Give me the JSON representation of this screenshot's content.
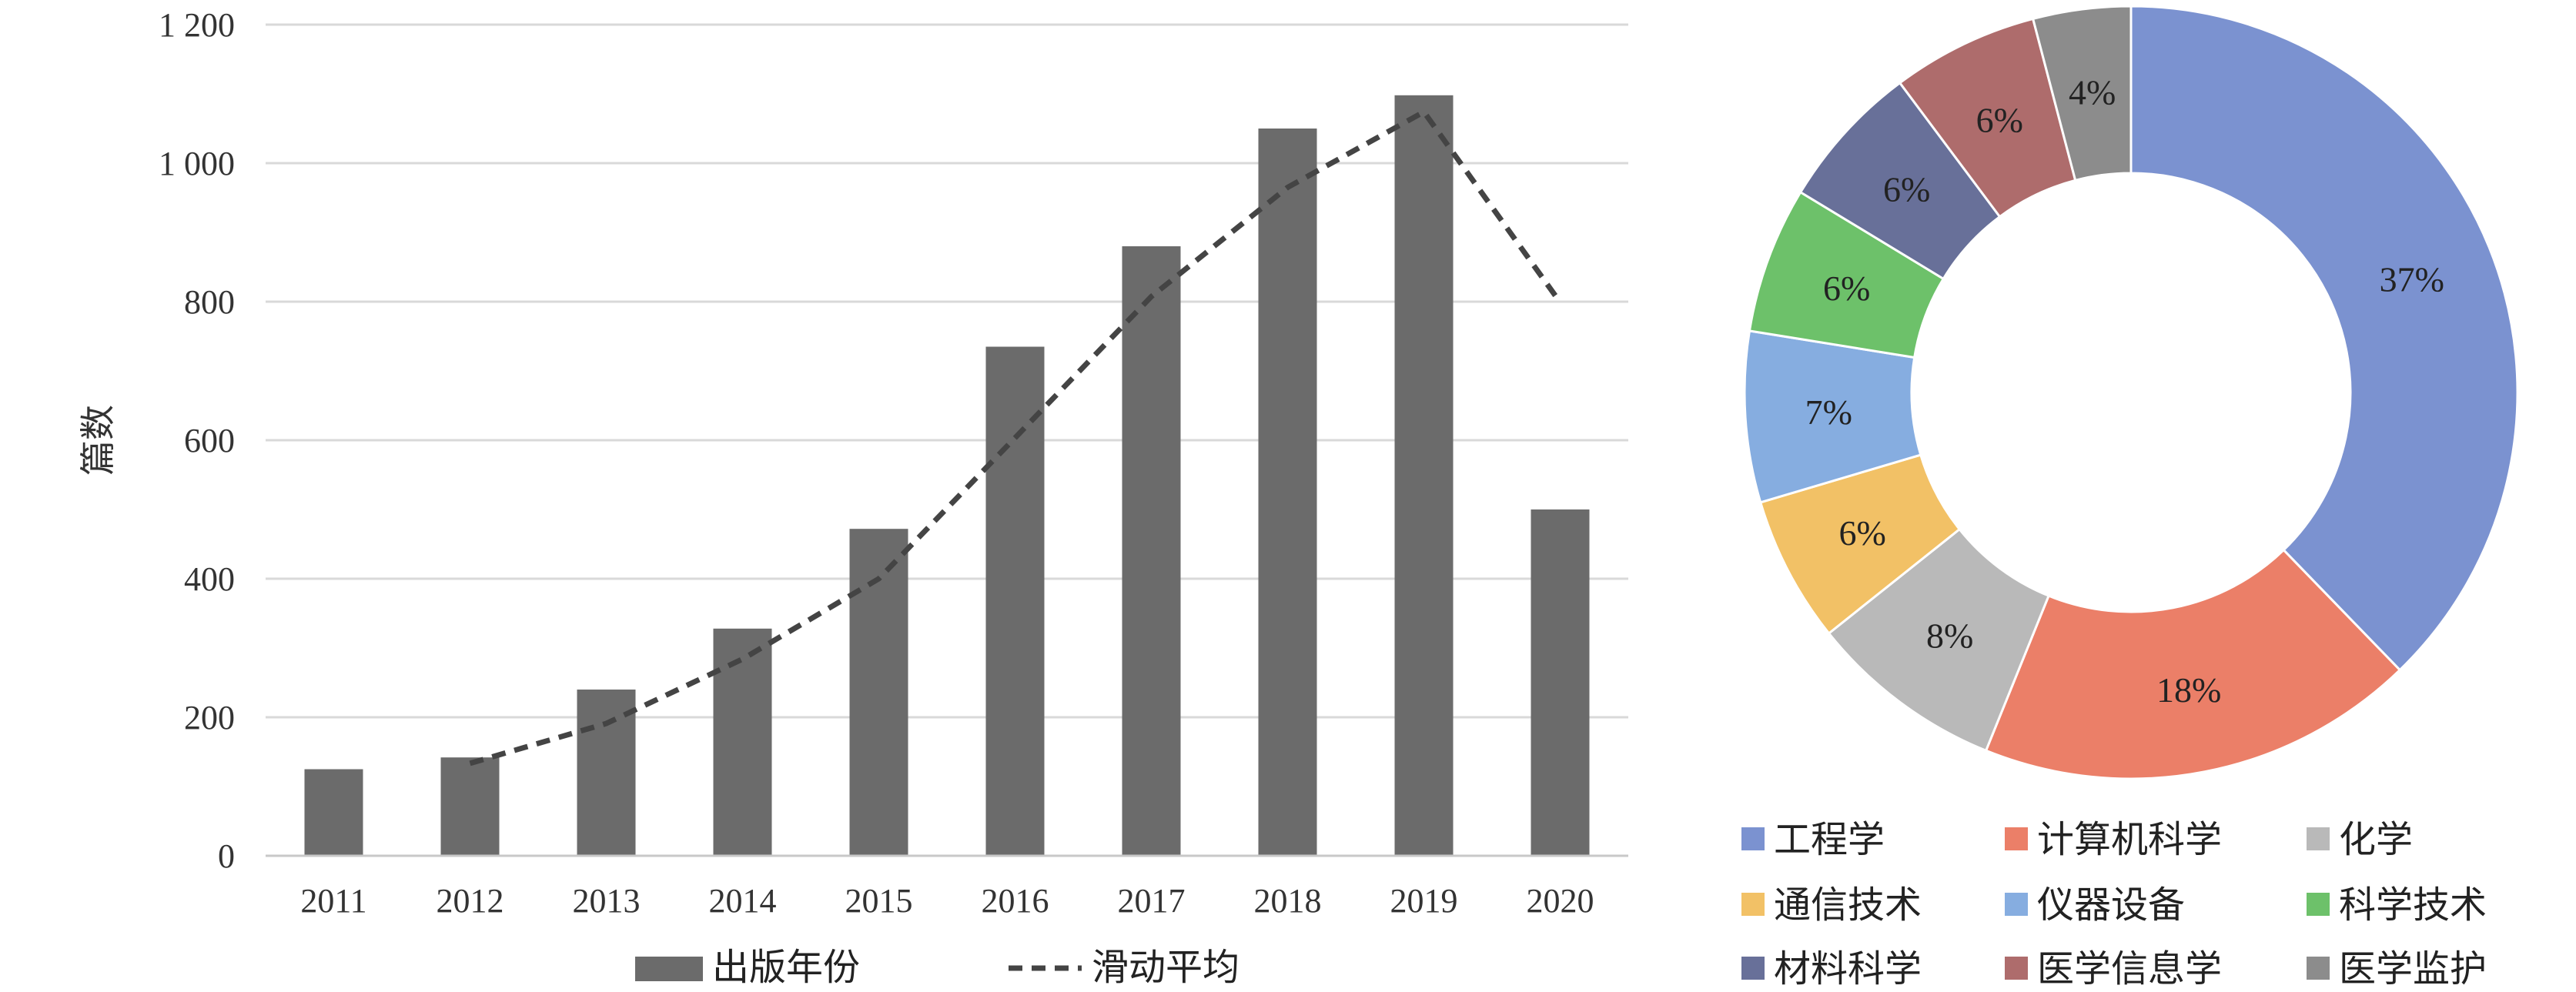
{
  "chart_data": [
    {
      "type": "bar",
      "ylabel": "篇数",
      "ylim": [
        0,
        1200
      ],
      "y_ticks": [
        0,
        200,
        400,
        600,
        800,
        1000,
        1200
      ],
      "y_tick_labels": [
        "0",
        "200",
        "400",
        "600",
        "800",
        "1 000",
        "1 200"
      ],
      "categories": [
        "2011",
        "2012",
        "2013",
        "2014",
        "2015",
        "2016",
        "2017",
        "2018",
        "2019",
        "2020"
      ],
      "grid": true,
      "legend_position": "bottom",
      "series": [
        {
          "name": "出版年份",
          "kind": "bar",
          "color": "#6b6b6b",
          "values": [
            125,
            142,
            240,
            328,
            472,
            735,
            880,
            1050,
            1098,
            500
          ]
        },
        {
          "name": "滑动平均",
          "kind": "line",
          "style": "dashed",
          "color": "#444444",
          "values": [
            null,
            133.5,
            191,
            284,
            400,
            603.5,
            807.5,
            965,
            1074,
            799
          ]
        }
      ]
    },
    {
      "type": "pie",
      "donut": true,
      "legend_position": "bottom",
      "slices": [
        {
          "label": "工程学",
          "value": 37,
          "text": "37%",
          "color": "#7b92d0"
        },
        {
          "label": "计算机科学",
          "value": 18,
          "text": "18%",
          "color": "#eb7f68"
        },
        {
          "label": "化学",
          "value": 8,
          "text": "8%",
          "color": "#b9b9b9"
        },
        {
          "label": "通信技术",
          "value": 6,
          "text": "6%",
          "color": "#f2c166"
        },
        {
          "label": "仪器设备",
          "value": 7,
          "text": "7%",
          "color": "#86ade0"
        },
        {
          "label": "科学技术",
          "value": 6,
          "text": "6%",
          "color": "#6dc16a"
        },
        {
          "label": "材料科学",
          "value": 6,
          "text": "6%",
          "color": "#687099"
        },
        {
          "label": "医学信息学",
          "value": 6,
          "text": "6%",
          "color": "#ae6c6c"
        },
        {
          "label": "医学监护",
          "value": 4,
          "text": "4%",
          "color": "#8c8c8c"
        }
      ],
      "legend": [
        "工程学",
        "计算机科学",
        "化学",
        "通信技术",
        "仪器设备",
        "科学技术",
        "材料科学",
        "医学信息学",
        "医学监护"
      ]
    }
  ]
}
